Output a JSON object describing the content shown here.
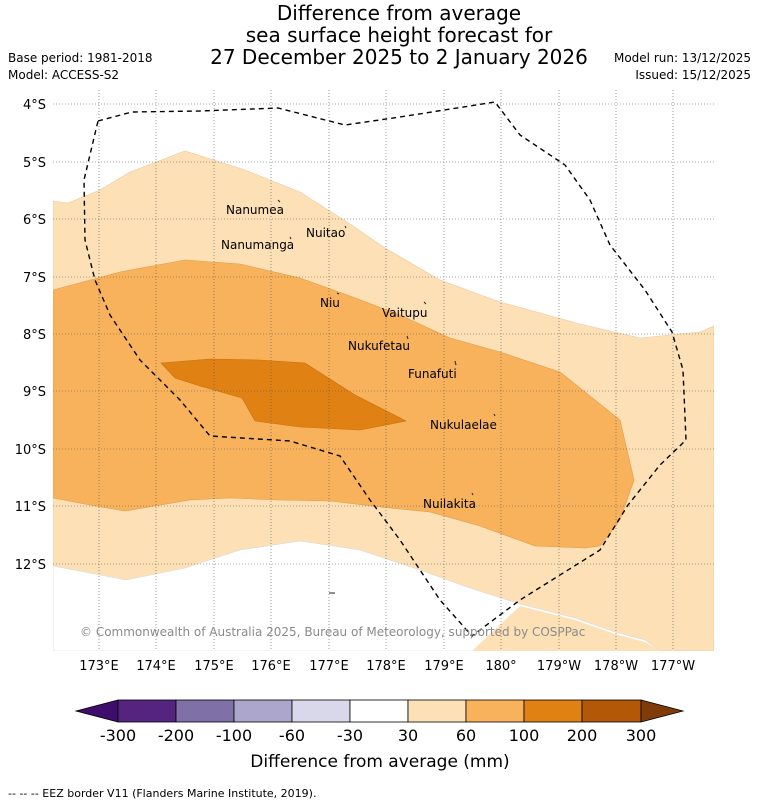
{
  "title": {
    "line1": "Difference from average",
    "line2": "sea surface height forecast for",
    "line3": "27 December 2025 to 2 January 2026"
  },
  "meta": {
    "base_period": "Base period: 1981-2018",
    "model": "Model: ACCESS-S2",
    "model_run": "Model run: 13/12/2025",
    "issued": "Issued: 15/12/2025"
  },
  "latitude_ticks": [
    "4°S",
    "5°S",
    "6°S",
    "7°S",
    "8°S",
    "9°S",
    "10°S",
    "11°S",
    "12°S"
  ],
  "longitude_ticks": [
    "173°E",
    "174°E",
    "175°E",
    "176°E",
    "177°E",
    "178°E",
    "179°E",
    "180°",
    "179°W",
    "178°W",
    "177°W"
  ],
  "places": {
    "nanumea": "Nanumea",
    "nuitao": "Nuitao",
    "nanumanga": "Nanumanga",
    "niu": "Niu",
    "vaitupu": "Vaitupu",
    "nukufetau": "Nukufetau",
    "funafuti": "Funafuti",
    "nukulaelae": "Nukulaelae",
    "nuilakita": "Nuilakita"
  },
  "copyright": "© Commonwealth of Australia 2025, Bureau of Meteorology, supported by COSPPac",
  "legend": {
    "title": "Difference from average (mm)",
    "values": [
      "-300",
      "-200",
      "-100",
      "-60",
      "-30",
      "30",
      "60",
      "100",
      "200",
      "300"
    ],
    "colors": [
      "#3f0d6b",
      "#54247f",
      "#7f70a8",
      "#aca5cc",
      "#d9d7ea",
      "#ffffff",
      "#fde0b5",
      "#f9b25c",
      "#e08114",
      "#b25806",
      "#7f3b08"
    ]
  },
  "eez_note": "-- -- -- EEZ border V11 (Flanders Marine Institute, 2019)."
}
